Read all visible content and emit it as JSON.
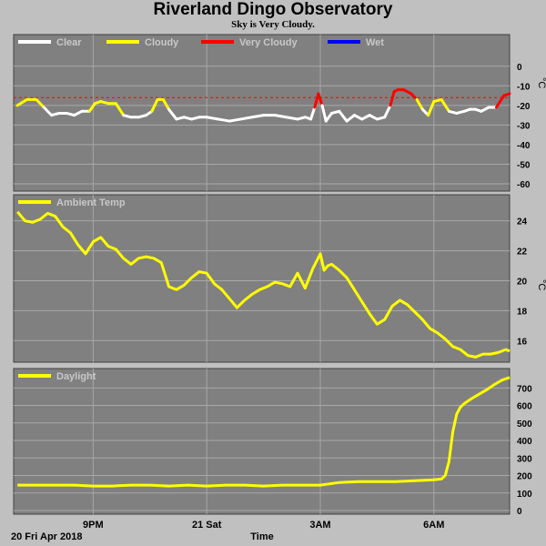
{
  "header": {
    "title": "Riverland Dingo Observatory",
    "subtitle": "Sky is Very Cloudy."
  },
  "colors": {
    "background": "#c0c0c0",
    "panel": "#808080",
    "grid": "#a8a8a8",
    "clear": "#ffffff",
    "cloudy": "#ffff00",
    "very_cloudy": "#ff0000",
    "wet": "#0000ff",
    "threshold": "#ff0000",
    "series": "#ffff00"
  },
  "x_axis": {
    "tick_labels": [
      "9PM",
      "21 Sat",
      "3AM",
      "6AM"
    ],
    "tick_hours": [
      21,
      24,
      27,
      30
    ],
    "date_label": "20 Fri Apr 2018",
    "title": "Time",
    "range_hours": [
      18.9,
      32.0
    ]
  },
  "chart_data": [
    {
      "type": "line",
      "name": "sky",
      "ylabel": "°C",
      "ylim": [
        -60,
        5
      ],
      "yticks": [
        0,
        -10,
        -20,
        -30,
        -40,
        -50,
        -60
      ],
      "legend": [
        {
          "label": "Clear",
          "color": "#ffffff"
        },
        {
          "label": "Cloudy",
          "color": "#ffff00"
        },
        {
          "label": "Very Cloudy",
          "color": "#ff0000"
        },
        {
          "label": "Wet",
          "color": "#0000ff"
        }
      ],
      "legend_position": "top-left",
      "threshold": -16,
      "cloudy_level": -19,
      "very_cloudy_level": -16,
      "series": [
        {
          "x": [
            19.0,
            19.25,
            19.5,
            19.7,
            19.9,
            20.1,
            20.3,
            20.5,
            20.7,
            20.9,
            21.05,
            21.2,
            21.4,
            21.6,
            21.8,
            22.0,
            22.2,
            22.4,
            22.55,
            22.7,
            22.85,
            23.0,
            23.2,
            23.4,
            23.6,
            23.8,
            24.0,
            24.3,
            24.6,
            24.9,
            25.2,
            25.5,
            25.8,
            26.1,
            26.4,
            26.6,
            26.75,
            26.85,
            26.95,
            27.05,
            27.15,
            27.3,
            27.5,
            27.7,
            27.9,
            28.1,
            28.3,
            28.5,
            28.7,
            28.85,
            28.95,
            29.05,
            29.2,
            29.4,
            29.55,
            29.7,
            29.85,
            30.0,
            30.2,
            30.4,
            30.6,
            30.8,
            30.95,
            31.1,
            31.25,
            31.45,
            31.65,
            31.85,
            32.0
          ],
          "y": [
            -20,
            -17,
            -17,
            -21,
            -25,
            -24,
            -24,
            -25,
            -23,
            -23,
            -19,
            -18,
            -19,
            -19,
            -25,
            -26,
            -26,
            -25,
            -23,
            -17,
            -17,
            -22,
            -27,
            -26,
            -27,
            -26,
            -26,
            -27,
            -28,
            -27,
            -26,
            -25,
            -25,
            -26,
            -27,
            -26,
            -27,
            -21,
            -14,
            -20,
            -28,
            -24,
            -23,
            -28,
            -25,
            -27,
            -25,
            -27,
            -26,
            -20,
            -13,
            -12,
            -12,
            -14,
            -17,
            -22,
            -25,
            -18,
            -17,
            -23,
            -24,
            -23,
            -22,
            -22,
            -23,
            -21,
            -21,
            -15,
            -14
          ]
        }
      ]
    },
    {
      "type": "line",
      "name": "ambient",
      "ylim": [
        14.8,
        25.5
      ],
      "yticks": [
        24,
        22,
        20,
        18,
        16
      ],
      "legend": [
        {
          "label": "Ambient Temp",
          "color": "#ffff00"
        }
      ],
      "legend_position": "top-left",
      "series": [
        {
          "name": "Ambient Temp",
          "x": [
            19.0,
            19.2,
            19.4,
            19.6,
            19.8,
            20.0,
            20.2,
            20.4,
            20.6,
            20.8,
            21.0,
            21.2,
            21.4,
            21.6,
            21.8,
            22.0,
            22.2,
            22.4,
            22.6,
            22.8,
            23.0,
            23.2,
            23.4,
            23.6,
            23.8,
            24.0,
            24.2,
            24.4,
            24.6,
            24.8,
            25.0,
            25.2,
            25.4,
            25.6,
            25.8,
            26.0,
            26.2,
            26.4,
            26.6,
            26.8,
            27.0,
            27.1,
            27.2,
            27.3,
            27.5,
            27.7,
            27.9,
            28.1,
            28.3,
            28.5,
            28.7,
            28.9,
            29.1,
            29.3,
            29.5,
            29.7,
            29.9,
            30.1,
            30.3,
            30.5,
            30.7,
            30.9,
            31.1,
            31.3,
            31.5,
            31.7,
            31.9,
            32.0
          ],
          "y": [
            24.6,
            24.0,
            23.9,
            24.1,
            24.5,
            24.3,
            23.6,
            23.2,
            22.4,
            21.8,
            22.6,
            22.9,
            22.3,
            22.1,
            21.5,
            21.1,
            21.5,
            21.6,
            21.5,
            21.2,
            19.6,
            19.4,
            19.7,
            20.2,
            20.6,
            20.5,
            19.8,
            19.4,
            18.8,
            18.2,
            18.7,
            19.1,
            19.4,
            19.6,
            19.9,
            19.8,
            19.6,
            20.5,
            19.5,
            20.8,
            21.8,
            20.7,
            21.0,
            21.1,
            20.7,
            20.2,
            19.4,
            18.6,
            17.8,
            17.1,
            17.4,
            18.3,
            18.7,
            18.4,
            17.9,
            17.4,
            16.8,
            16.5,
            16.1,
            15.6,
            15.4,
            15.0,
            14.9,
            15.1,
            15.1,
            15.2,
            15.4,
            15.3
          ]
        }
      ]
    },
    {
      "type": "line",
      "name": "daylight",
      "ylim": [
        0,
        790
      ],
      "yticks": [
        700,
        600,
        500,
        400,
        300,
        200,
        100,
        0
      ],
      "legend": [
        {
          "label": "Daylight",
          "color": "#ffff00"
        }
      ],
      "legend_position": "top-left",
      "series": [
        {
          "name": "Daylight",
          "x": [
            19.0,
            19.5,
            20.0,
            20.5,
            21.0,
            21.5,
            22.0,
            22.5,
            23.0,
            23.5,
            24.0,
            24.5,
            25.0,
            25.5,
            26.0,
            26.5,
            27.0,
            27.5,
            28.0,
            28.5,
            29.0,
            29.5,
            30.0,
            30.2,
            30.3,
            30.4,
            30.5,
            30.6,
            30.7,
            30.8,
            30.9,
            31.0,
            31.2,
            31.4,
            31.6,
            31.8,
            32.0
          ],
          "y": [
            145,
            145,
            145,
            145,
            140,
            140,
            145,
            145,
            140,
            145,
            140,
            145,
            145,
            140,
            145,
            145,
            145,
            160,
            165,
            165,
            165,
            170,
            175,
            180,
            200,
            280,
            450,
            550,
            590,
            610,
            625,
            640,
            665,
            690,
            720,
            745,
            760
          ]
        }
      ]
    }
  ]
}
